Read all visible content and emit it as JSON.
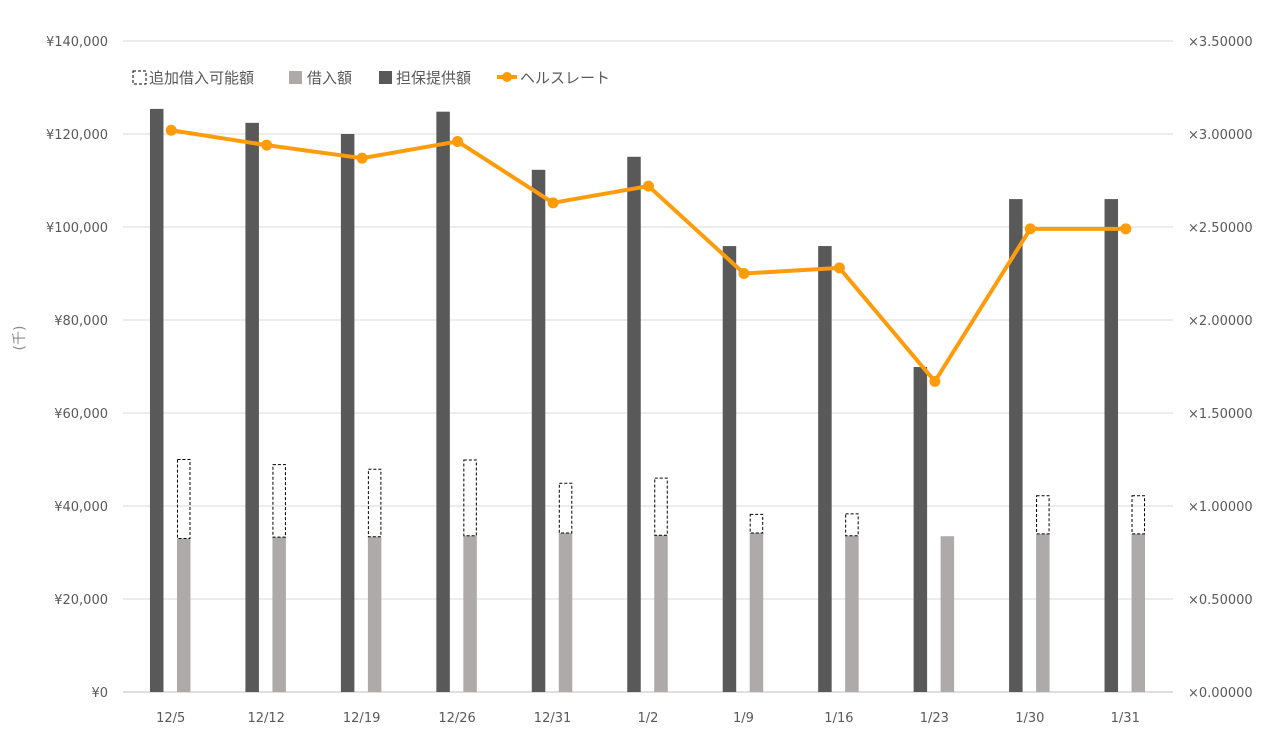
{
  "chart_data": {
    "type": "bar+line",
    "categories": [
      "12/5",
      "12/12",
      "12/19",
      "12/26",
      "12/31",
      "1/2",
      "1/9",
      "1/16",
      "1/23",
      "1/30",
      "1/31"
    ],
    "series": [
      {
        "name": "追加借入可能額",
        "kind": "stacked-bar-outline",
        "values": [
          17000,
          15600,
          14500,
          16300,
          10700,
          12300,
          4000,
          4700,
          0,
          8200,
          8200
        ]
      },
      {
        "name": "借入額",
        "kind": "bar",
        "values": [
          33000,
          33300,
          33400,
          33600,
          34200,
          33700,
          34200,
          33600,
          33500,
          34000,
          34000
        ]
      },
      {
        "name": "担保提供額",
        "kind": "bar",
        "values": [
          125400,
          122400,
          120000,
          124800,
          112300,
          115100,
          95900,
          95900,
          69900,
          106000,
          106000
        ]
      },
      {
        "name": "ヘルスレート",
        "kind": "line",
        "axis": "right",
        "values": [
          3.02,
          2.94,
          2.87,
          2.96,
          2.63,
          2.72,
          2.25,
          2.28,
          1.67,
          2.49,
          2.49
        ]
      }
    ],
    "ylim": [
      0,
      140000
    ],
    "y2lim": [
      0,
      3.5
    ],
    "y_ticks": [
      "¥0",
      "¥20,000",
      "¥40,000",
      "¥60,000",
      "¥80,000",
      "¥100,000",
      "¥120,000",
      "¥140,000"
    ],
    "y2_ticks": [
      "×0.00000",
      "×0.50000",
      "×1.00000",
      "×1.50000",
      "×2.00000",
      "×2.50000",
      "×3.00000",
      "×3.50000"
    ],
    "ylabel": "(千)",
    "grid": true,
    "legend_position": "top-left",
    "colors": {
      "collateral": "#595959",
      "borrowed": "#aeaaaa",
      "additional_outline": "#000000",
      "health_rate": "#ff9c0b",
      "grid": "#d9d9d9",
      "axis_text": "#595959"
    }
  }
}
